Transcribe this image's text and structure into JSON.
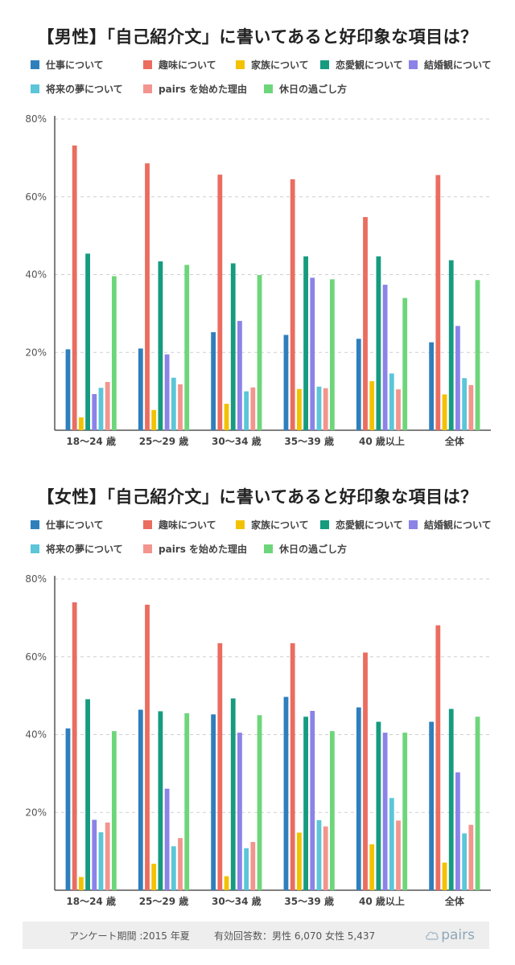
{
  "legend": {
    "items": [
      {
        "label": "仕事について",
        "color": "#2f7fbd"
      },
      {
        "label": "趣味について",
        "color": "#ea6d60"
      },
      {
        "label": "家族について",
        "color": "#f2c200"
      },
      {
        "label": "恋愛観について",
        "color": "#169b7f"
      },
      {
        "label": "結婚観について",
        "color": "#8b83e8"
      },
      {
        "label": "将来の夢について",
        "color": "#5bc6d8"
      },
      {
        "label": "pairs を始めた理由",
        "color": "#f2958e"
      },
      {
        "label": "休日の過ごし方",
        "color": "#6ed67a"
      }
    ]
  },
  "chart_data": [
    {
      "type": "bar",
      "title": "【男性】「自己紹介文」に書いてあると好印象な項目は？",
      "categories": [
        "18～24 歳",
        "25～29 歳",
        "30～34 歳",
        "35～39 歳",
        "40 歳以上",
        "全体"
      ],
      "ylim": [
        0,
        80
      ],
      "yticks": [
        20,
        40,
        60,
        80
      ],
      "ytick_labels": [
        "20%",
        "40%",
        "60%",
        "80%"
      ],
      "grid": true,
      "legend_position": "top",
      "series": [
        {
          "name": "仕事について",
          "values": [
            20.8,
            21.0,
            25.2,
            24.5,
            23.5,
            22.6
          ]
        },
        {
          "name": "趣味について",
          "values": [
            73.2,
            68.6,
            65.7,
            64.5,
            54.8,
            65.6
          ]
        },
        {
          "name": "家族について",
          "values": [
            3.3,
            5.2,
            6.8,
            10.6,
            12.6,
            9.2
          ]
        },
        {
          "name": "恋愛観について",
          "values": [
            45.4,
            43.4,
            42.9,
            44.7,
            44.7,
            43.7
          ]
        },
        {
          "name": "結婚観について",
          "values": [
            9.3,
            19.5,
            28.1,
            39.2,
            37.4,
            26.8
          ]
        },
        {
          "name": "将来の夢について",
          "values": [
            10.9,
            13.5,
            10.0,
            11.2,
            14.6,
            13.4
          ]
        },
        {
          "name": "pairs を始めた理由",
          "values": [
            12.4,
            11.8,
            11.0,
            10.8,
            10.5,
            11.6
          ]
        },
        {
          "name": "休日の過ごし方",
          "values": [
            39.6,
            42.5,
            39.9,
            38.8,
            34.0,
            38.6
          ]
        }
      ]
    },
    {
      "type": "bar",
      "title": "【女性】「自己紹介文」に書いてあると好印象な項目は？",
      "categories": [
        "18～24 歳",
        "25～29 歳",
        "30～34 歳",
        "35～39 歳",
        "40 歳以上",
        "全体"
      ],
      "ylim": [
        0,
        80
      ],
      "yticks": [
        20,
        40,
        60,
        80
      ],
      "ytick_labels": [
        "20%",
        "40%",
        "60%",
        "80%"
      ],
      "grid": true,
      "legend_position": "top",
      "series": [
        {
          "name": "仕事について",
          "values": [
            41.6,
            46.4,
            45.2,
            49.7,
            47.0,
            43.3
          ]
        },
        {
          "name": "趣味について",
          "values": [
            74.0,
            73.4,
            63.5,
            63.5,
            61.1,
            68.1
          ]
        },
        {
          "name": "家族について",
          "values": [
            3.4,
            6.8,
            3.6,
            14.8,
            11.8,
            7.1
          ]
        },
        {
          "name": "恋愛観について",
          "values": [
            49.1,
            46.0,
            49.3,
            44.6,
            43.3,
            46.6
          ]
        },
        {
          "name": "結婚観について",
          "values": [
            18.1,
            26.1,
            40.5,
            46.1,
            40.5,
            30.3
          ]
        },
        {
          "name": "将来の夢について",
          "values": [
            14.9,
            11.3,
            10.8,
            18.0,
            23.7,
            14.6
          ]
        },
        {
          "name": "pairs を始めた理由",
          "values": [
            17.4,
            13.4,
            12.4,
            16.4,
            17.9,
            16.8
          ]
        },
        {
          "name": "休日の過ごし方",
          "values": [
            40.9,
            45.5,
            45.0,
            40.9,
            40.5,
            44.6
          ]
        }
      ]
    }
  ],
  "footer": {
    "survey": "アンケート期間 :2015 年夏",
    "respondents": "有効回答数：男性 6,070  女性 5,437",
    "logo": "pairs"
  }
}
